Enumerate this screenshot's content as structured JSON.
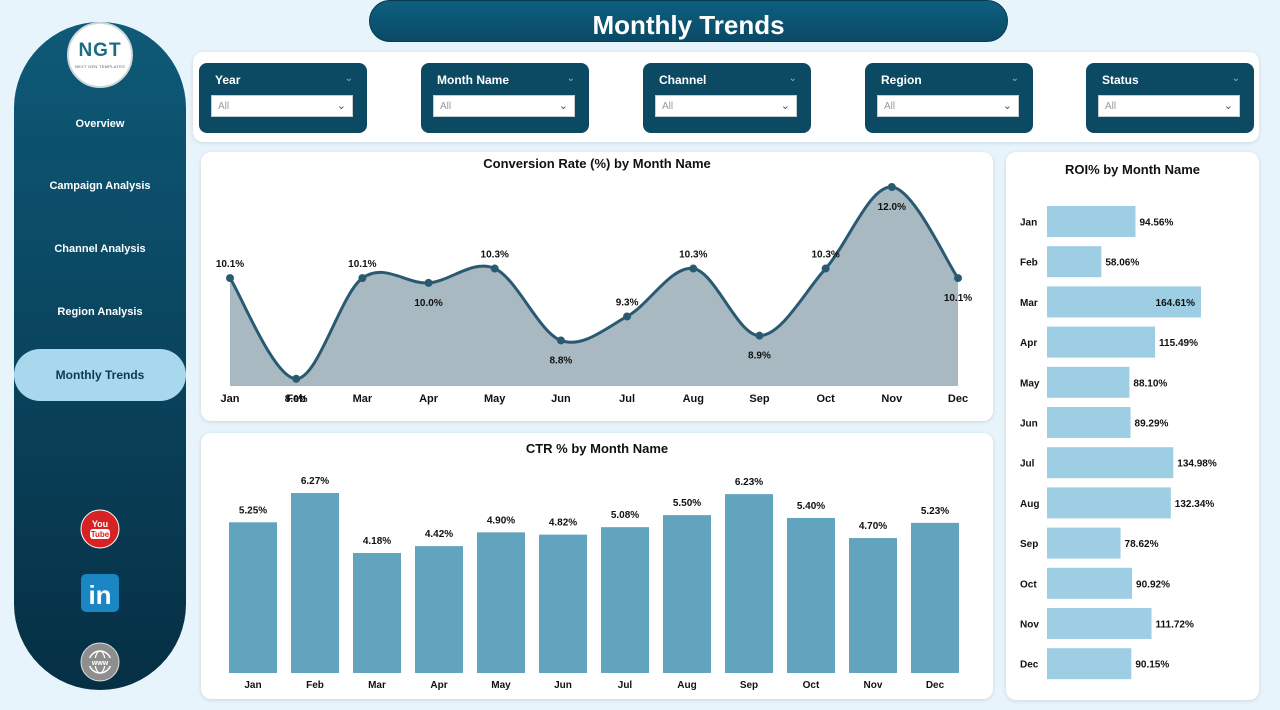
{
  "title": "Monthly Trends",
  "logo": {
    "mark": "NGT",
    "subtitle": "NEXT GEN TEMPLATES"
  },
  "nav": [
    {
      "label": "Overview",
      "active": false
    },
    {
      "label": "Campaign Analysis",
      "active": false
    },
    {
      "label": "Channel Analysis",
      "active": false
    },
    {
      "label": "Region Analysis",
      "active": false
    },
    {
      "label": "Monthly Trends",
      "active": true
    }
  ],
  "social": {
    "youtube_text": "You Tube",
    "linkedin_text": "in"
  },
  "filters": [
    {
      "label": "Year",
      "value": "All"
    },
    {
      "label": "Month Name",
      "value": "All"
    },
    {
      "label": "Channel",
      "value": "All"
    },
    {
      "label": "Region",
      "value": "All"
    },
    {
      "label": "Status",
      "value": "All"
    }
  ],
  "colors": {
    "area_line": "#2a5a72",
    "area_fill": "#a9b9c1",
    "ctr_bar": "#62a4bd",
    "roi_bar": "#9dcee4",
    "sidebar": "#0a4660"
  },
  "chart_data": [
    {
      "type": "area",
      "title": "Conversion Rate (%) by Month Name",
      "categories": [
        "Jan",
        "Feb",
        "Mar",
        "Apr",
        "May",
        "Jun",
        "Jul",
        "Aug",
        "Sep",
        "Oct",
        "Nov",
        "Dec"
      ],
      "values": [
        10.1,
        8.0,
        10.1,
        10.0,
        10.3,
        8.8,
        9.3,
        10.3,
        8.9,
        10.3,
        12.0,
        10.1
      ],
      "labels": [
        "10.1%",
        "8.0%",
        "10.1%",
        "10.0%",
        "10.3%",
        "8.8%",
        "9.3%",
        "10.3%",
        "8.9%",
        "10.3%",
        "12.0%",
        "10.1%"
      ]
    },
    {
      "type": "bar",
      "title": "CTR % by Month Name",
      "categories": [
        "Jan",
        "Feb",
        "Mar",
        "Apr",
        "May",
        "Jun",
        "Jul",
        "Aug",
        "Sep",
        "Oct",
        "Nov",
        "Dec"
      ],
      "values": [
        5.25,
        6.27,
        4.18,
        4.42,
        4.9,
        4.82,
        5.08,
        5.5,
        6.23,
        5.4,
        4.7,
        5.23
      ],
      "labels": [
        "5.25%",
        "6.27%",
        "4.18%",
        "4.42%",
        "4.90%",
        "4.82%",
        "5.08%",
        "5.50%",
        "6.23%",
        "5.40%",
        "4.70%",
        "5.23%"
      ]
    },
    {
      "type": "bar",
      "orientation": "horizontal",
      "title": "ROI% by Month Name",
      "categories": [
        "Jan",
        "Feb",
        "Mar",
        "Apr",
        "May",
        "Jun",
        "Jul",
        "Aug",
        "Sep",
        "Oct",
        "Nov",
        "Dec"
      ],
      "values": [
        94.56,
        58.06,
        164.61,
        115.49,
        88.1,
        89.29,
        134.98,
        132.34,
        78.62,
        90.92,
        111.72,
        90.15
      ],
      "labels": [
        "94.56%",
        "58.06%",
        "164.61%",
        "115.49%",
        "88.10%",
        "89.29%",
        "134.98%",
        "132.34%",
        "78.62%",
        "90.92%",
        "111.72%",
        "90.15%"
      ]
    }
  ]
}
